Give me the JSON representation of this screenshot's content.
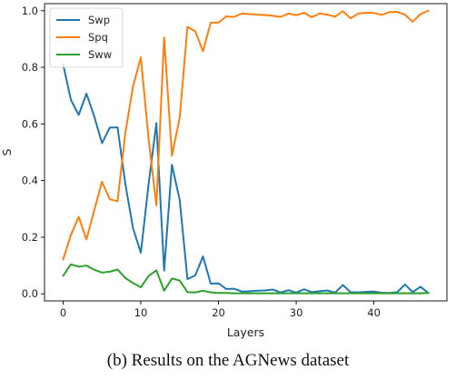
{
  "caption": "(b) Results on the AGNews dataset",
  "chart_data": {
    "type": "line",
    "xlabel": "Layers",
    "ylabel": "S",
    "xlim": [
      -2.4,
      49.4
    ],
    "ylim": [
      -0.025,
      1.025
    ],
    "xticks": [
      0,
      10,
      20,
      30,
      40
    ],
    "yticks": [
      0.0,
      0.2,
      0.4,
      0.6,
      0.8,
      1.0
    ],
    "legend_position": "top-left",
    "grid": false,
    "x": [
      0,
      1,
      2,
      3,
      4,
      5,
      6,
      7,
      8,
      9,
      10,
      11,
      12,
      13,
      14,
      15,
      16,
      17,
      18,
      19,
      20,
      21,
      22,
      23,
      24,
      25,
      26,
      27,
      28,
      29,
      30,
      31,
      32,
      33,
      34,
      35,
      36,
      37,
      38,
      39,
      40,
      41,
      42,
      43,
      44,
      45,
      46,
      47
    ],
    "series": [
      {
        "name": "Swp",
        "color": "#1f77b4",
        "values": [
          0.81,
          0.685,
          0.632,
          0.707,
          0.627,
          0.532,
          0.587,
          0.588,
          0.389,
          0.231,
          0.145,
          0.388,
          0.603,
          0.082,
          0.456,
          0.332,
          0.052,
          0.065,
          0.132,
          0.036,
          0.037,
          0.017,
          0.018,
          0.008,
          0.009,
          0.011,
          0.012,
          0.015,
          0.005,
          0.013,
          0.004,
          0.016,
          0.006,
          0.009,
          0.012,
          0.004,
          0.031,
          0.006,
          0.005,
          0.007,
          0.008,
          0.004,
          0.003,
          0.006,
          0.033,
          0.006,
          0.025,
          0.003
        ]
      },
      {
        "name": "Spq",
        "color": "#ff7f0e",
        "values": [
          0.122,
          0.208,
          0.272,
          0.192,
          0.295,
          0.396,
          0.334,
          0.327,
          0.568,
          0.733,
          0.835,
          0.547,
          0.312,
          0.905,
          0.488,
          0.622,
          0.943,
          0.928,
          0.857,
          0.958,
          0.958,
          0.98,
          0.978,
          0.99,
          0.988,
          0.986,
          0.985,
          0.982,
          0.978,
          0.99,
          0.984,
          0.993,
          0.977,
          0.99,
          0.986,
          0.979,
          0.998,
          0.973,
          0.99,
          0.993,
          0.992,
          0.985,
          0.995,
          0.996,
          0.986,
          0.961,
          0.988,
          1.0
        ]
      },
      {
        "name": "Sww",
        "color": "#2ca02c",
        "values": [
          0.064,
          0.104,
          0.096,
          0.1,
          0.085,
          0.075,
          0.078,
          0.086,
          0.056,
          0.038,
          0.023,
          0.063,
          0.083,
          0.011,
          0.054,
          0.047,
          0.006,
          0.005,
          0.011,
          0.005,
          0.003,
          0.003,
          0.002,
          0.002,
          0.002,
          0.002,
          0.002,
          0.002,
          0.002,
          0.002,
          0.002,
          0.002,
          0.002,
          0.002,
          0.002,
          0.002,
          0.002,
          0.002,
          0.002,
          0.002,
          0.002,
          0.002,
          0.002,
          0.002,
          0.002,
          0.002,
          0.002,
          0.003
        ]
      }
    ]
  }
}
